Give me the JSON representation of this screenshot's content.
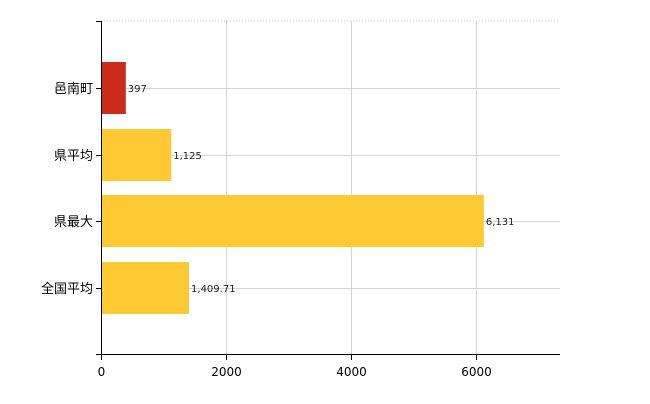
{
  "chart_data": {
    "type": "bar",
    "orientation": "horizontal",
    "categories": [
      "邑南町",
      "県平均",
      "県最大",
      "全国平均"
    ],
    "values": [
      397,
      1125,
      6131,
      1409.71
    ],
    "value_labels": [
      "397",
      "1,125",
      "6,131",
      "1,409.71"
    ],
    "bar_colors": [
      "#cc2a1b",
      "#ffc933",
      "#ffc933",
      "#ffc933"
    ],
    "x_ticks": [
      "0",
      "2000",
      "4000",
      "6000"
    ],
    "x_tick_values": [
      0,
      2000,
      4000,
      6000
    ],
    "xlim": [
      0,
      7350
    ],
    "title": "",
    "xlabel": "",
    "ylabel": "",
    "grid": true,
    "legend": "none"
  }
}
